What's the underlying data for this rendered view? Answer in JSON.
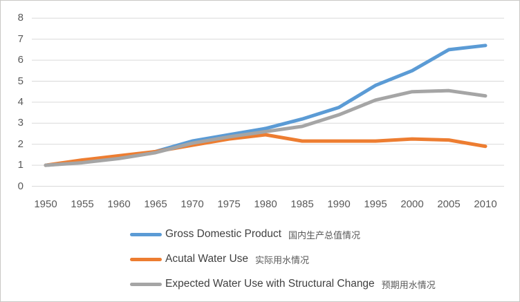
{
  "chart": {
    "background": "#ffffff",
    "border_color": "#c9c7c5",
    "gridline_color": "#d9d9d9",
    "axis_label_color": "#595959",
    "legend_text_color": "#3f3f3f"
  },
  "chart_data": {
    "type": "line",
    "title": "",
    "xlabel": "",
    "ylabel": "",
    "ylim": [
      0,
      8
    ],
    "ytick_interval": 1,
    "grid": true,
    "legend_position": "bottom-left",
    "x": [
      1950,
      1955,
      1960,
      1965,
      1970,
      1975,
      1980,
      1985,
      1990,
      1995,
      2000,
      2005,
      2010
    ],
    "series": [
      {
        "name": "Gross Domestic Product",
        "name_zh": "国内生产总值情况",
        "color": "#5b9bd5",
        "values": [
          1.0,
          1.15,
          1.35,
          1.65,
          2.15,
          2.45,
          2.75,
          3.2,
          3.75,
          4.8,
          5.5,
          6.5,
          6.7
        ]
      },
      {
        "name": "Acutal Water Use",
        "name_zh": "实际用水情况",
        "color": "#ed7d31",
        "values": [
          1.0,
          1.25,
          1.45,
          1.65,
          1.95,
          2.25,
          2.45,
          2.15,
          2.15,
          2.15,
          2.25,
          2.2,
          1.9
        ]
      },
      {
        "name": "Expected Water Use with Structural Change",
        "name_zh": "预期用水情况",
        "color": "#a5a5a5",
        "values": [
          1.0,
          1.12,
          1.32,
          1.6,
          2.05,
          2.35,
          2.6,
          2.85,
          3.4,
          4.1,
          4.5,
          4.55,
          4.3
        ]
      }
    ]
  }
}
